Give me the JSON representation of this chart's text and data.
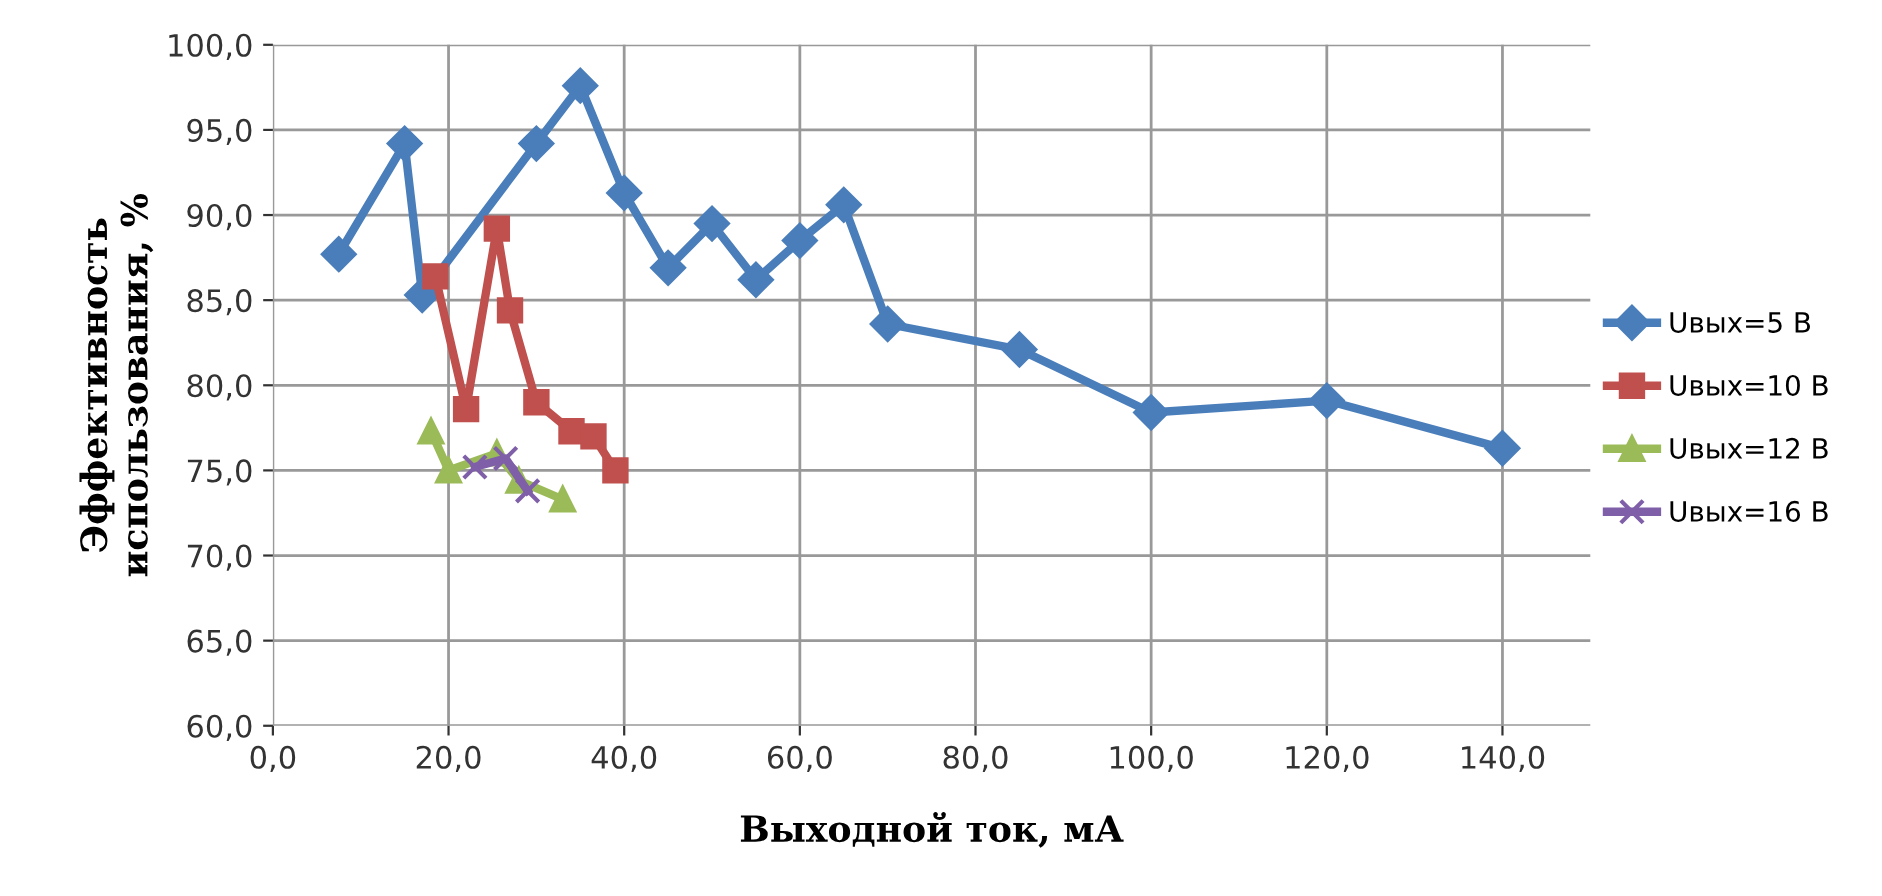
{
  "chart_data": {
    "type": "line",
    "xlabel": "Выходной ток, мА",
    "ylabel": "Эффективность\nиспользования, %",
    "xlim": [
      0,
      150
    ],
    "ylim": [
      60,
      100
    ],
    "xticks": [
      {
        "value": 0,
        "label": "0,0"
      },
      {
        "value": 20,
        "label": "20,0"
      },
      {
        "value": 40,
        "label": "40,0"
      },
      {
        "value": 60,
        "label": "60,0"
      },
      {
        "value": 80,
        "label": "80,0"
      },
      {
        "value": 100,
        "label": "100,0"
      },
      {
        "value": 120,
        "label": "120,0"
      },
      {
        "value": 140,
        "label": "140,0"
      }
    ],
    "yticks": [
      {
        "value": 60,
        "label": "60,0"
      },
      {
        "value": 65,
        "label": "65,0"
      },
      {
        "value": 70,
        "label": "70,0"
      },
      {
        "value": 75,
        "label": "75,0"
      },
      {
        "value": 80,
        "label": "80,0"
      },
      {
        "value": 85,
        "label": "85,0"
      },
      {
        "value": 90,
        "label": "90,0"
      },
      {
        "value": 95,
        "label": "95,0"
      },
      {
        "value": 100,
        "label": "100,0"
      }
    ],
    "grid": true,
    "legend": "right",
    "series": [
      {
        "name": "Uвых=5 В",
        "color": "#4a7ebb",
        "marker": "diamond",
        "x": [
          7.5,
          15,
          17,
          30,
          35,
          40,
          45,
          50,
          55,
          60,
          65,
          70,
          85,
          100,
          120,
          140
        ],
        "values": [
          87.7,
          94.2,
          85.3,
          94.2,
          97.6,
          91.3,
          86.9,
          89.5,
          86.2,
          88.5,
          90.6,
          83.6,
          82.1,
          78.4,
          79.1,
          76.3
        ]
      },
      {
        "name": "Uвых=10 В",
        "color": "#c0504d",
        "marker": "square",
        "x": [
          18.5,
          22,
          25.5,
          27,
          30,
          34,
          36.5,
          39
        ],
        "values": [
          86.4,
          78.6,
          89.2,
          84.4,
          79.0,
          77.3,
          77.0,
          75.0
        ]
      },
      {
        "name": "Uвых=12 В",
        "color": "#9bbb59",
        "marker": "triangle",
        "x": [
          18,
          20,
          25.5,
          28,
          33
        ],
        "values": [
          77.3,
          75.0,
          76.0,
          74.4,
          73.3
        ]
      },
      {
        "name": "Uвых=16 В",
        "color": "#7f5fa8",
        "marker": "cross",
        "x": [
          23,
          26.5,
          29
        ],
        "values": [
          75.2,
          75.7,
          73.8
        ]
      }
    ]
  }
}
